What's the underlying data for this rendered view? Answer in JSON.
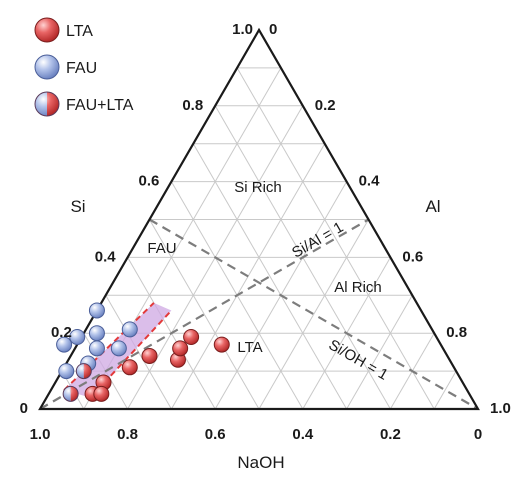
{
  "chart_data": {
    "type": "ternary-scatter",
    "axes": {
      "left": "Si",
      "right": "Al",
      "bottom": "NaOH"
    },
    "ticks": {
      "bottom": [
        "1.0",
        "0.8",
        "0.6",
        "0.4",
        "0.2",
        "0"
      ],
      "left": [
        "0",
        "0.2",
        "0.4",
        "0.6",
        "0.8",
        "1.0"
      ],
      "right": [
        "0",
        "0.2",
        "0.4",
        "0.6",
        "0.8",
        "1.0"
      ]
    },
    "grid": true,
    "grid_step": 0.1,
    "legend": {
      "position": "top-left",
      "entries": [
        {
          "label": "LTA",
          "color": "#e05a5a"
        },
        {
          "label": "FAU",
          "color": "#9db1e0"
        },
        {
          "label": "FAU+LTA",
          "colors": [
            "#9db1e0",
            "#e05a5a"
          ]
        }
      ]
    },
    "region_labels": [
      "Si Rich",
      "Al Rich",
      "FAU",
      "LTA"
    ],
    "reference_lines": [
      {
        "label": "Si/Al = 1",
        "from": {
          "naoh": 1.0,
          "si": 0.0
        },
        "to": {
          "naoh": 0.0,
          "si": 0.5
        }
      },
      {
        "label": "Si/OH = 1",
        "from": {
          "naoh": 0.5,
          "si": 0.5
        },
        "to": {
          "naoh": 0.0,
          "si": 0.0
        }
      }
    ],
    "highlight_band": {
      "color": "#cfa8e3",
      "edge_color": "#e33a3a",
      "corners": [
        {
          "naoh": 0.92,
          "si": 0.05
        },
        {
          "naoh": 0.6,
          "si": 0.28
        },
        {
          "naoh": 0.57,
          "si": 0.26
        },
        {
          "naoh": 0.87,
          "si": 0.03
        }
      ]
    },
    "series": [
      {
        "name": "FAU",
        "color": "#9db1e0",
        "points": [
          {
            "naoh": 0.74,
            "si": 0.26
          },
          {
            "naoh": 0.69,
            "si": 0.21
          },
          {
            "naoh": 0.77,
            "si": 0.2
          },
          {
            "naoh": 0.82,
            "si": 0.19
          },
          {
            "naoh": 0.86,
            "si": 0.17
          },
          {
            "naoh": 0.79,
            "si": 0.16
          },
          {
            "naoh": 0.74,
            "si": 0.16
          },
          {
            "naoh": 0.83,
            "si": 0.12
          },
          {
            "naoh": 0.89,
            "si": 0.1
          }
        ]
      },
      {
        "name": "FAU+LTA",
        "colors": [
          "#9db1e0",
          "#e05a5a"
        ],
        "points": [
          {
            "naoh": 0.85,
            "si": 0.1
          },
          {
            "naoh": 0.91,
            "si": 0.04
          }
        ]
      },
      {
        "name": "LTA",
        "color": "#e05a5a",
        "points": [
          {
            "naoh": 0.82,
            "si": 0.07
          },
          {
            "naoh": 0.86,
            "si": 0.04
          },
          {
            "naoh": 0.84,
            "si": 0.04
          },
          {
            "naoh": 0.74,
            "si": 0.11
          },
          {
            "naoh": 0.68,
            "si": 0.14
          },
          {
            "naoh": 0.62,
            "si": 0.13
          },
          {
            "naoh": 0.6,
            "si": 0.16
          },
          {
            "naoh": 0.56,
            "si": 0.19
          },
          {
            "naoh": 0.5,
            "si": 0.17
          }
        ]
      }
    ]
  }
}
